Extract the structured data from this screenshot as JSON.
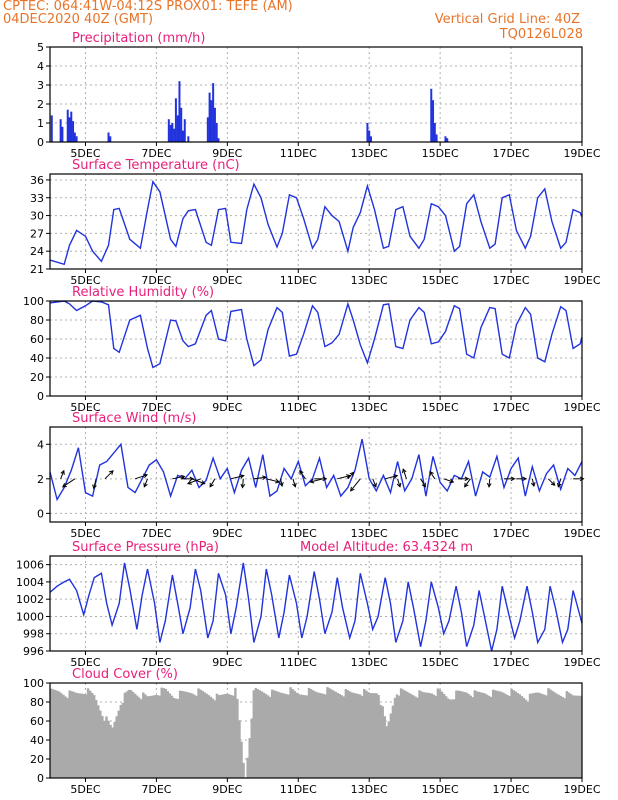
{
  "header": {
    "line1": "CPTEC:   064:41W-04:12S   PROX01: TEFE (AM)",
    "line2": "04DEC2020 40Z (GMT)",
    "right1": "Vertical Grid Line: 40Z",
    "right2": "TQ0126L028",
    "color": "#e8742a"
  },
  "colors": {
    "title": "#e8207a",
    "line": "#2233dd",
    "bar": "#2233dd",
    "cloud": "#aaaaaa",
    "grid": "#b0b0b0"
  },
  "x_tick_labels": [
    "5DEC",
    "7DEC",
    "9DEC",
    "11DEC",
    "13DEC",
    "15DEC",
    "17DEC",
    "19DEC"
  ],
  "x_tick_days": [
    5,
    7,
    9,
    11,
    13,
    15,
    17,
    19
  ],
  "x_range": [
    4.0,
    19.0
  ],
  "chart_data": [
    {
      "type": "bar",
      "title": "Precipitation (mm/h)",
      "ylim": [
        0,
        5
      ],
      "yticks": [
        0,
        1,
        2,
        3,
        4,
        5
      ],
      "x_unit": "day of December 2020",
      "x": [
        4.05,
        4.3,
        4.35,
        4.5,
        4.55,
        4.6,
        4.65,
        4.7,
        4.75,
        5.65,
        5.7,
        7.35,
        7.4,
        7.45,
        7.5,
        7.55,
        7.6,
        7.65,
        7.7,
        7.75,
        7.8,
        7.9,
        8.45,
        8.5,
        8.55,
        8.6,
        8.65,
        8.7,
        8.75,
        12.95,
        13.0,
        13.05,
        14.75,
        14.8,
        14.85,
        14.9,
        15.15,
        15.2
      ],
      "values": [
        1.4,
        1.2,
        0.8,
        1.7,
        1.3,
        1.6,
        1.1,
        0.5,
        0.3,
        0.5,
        0.3,
        1.2,
        0.9,
        1.0,
        0.7,
        2.3,
        1.4,
        3.2,
        1.8,
        0.6,
        1.2,
        0.3,
        1.3,
        2.6,
        2.2,
        3.1,
        1.8,
        1.0,
        0.2,
        1.0,
        0.6,
        0.3,
        2.8,
        2.2,
        1.0,
        0.4,
        0.3,
        0.2
      ]
    },
    {
      "type": "line",
      "title": "Surface Temperature (nC)",
      "ylim": [
        21,
        37
      ],
      "yticks": [
        21,
        24,
        27,
        30,
        33,
        36
      ],
      "x_unit": "day of December 2020",
      "x": [
        4.0,
        4.4,
        4.55,
        4.75,
        5.0,
        5.2,
        5.45,
        5.65,
        5.8,
        5.95,
        6.25,
        6.55,
        6.75,
        6.9,
        7.1,
        7.4,
        7.55,
        7.75,
        7.9,
        8.1,
        8.4,
        8.55,
        8.75,
        8.95,
        9.1,
        9.4,
        9.55,
        9.75,
        9.95,
        10.15,
        10.4,
        10.55,
        10.75,
        10.95,
        11.15,
        11.4,
        11.55,
        11.75,
        11.95,
        12.15,
        12.4,
        12.55,
        12.75,
        12.95,
        13.15,
        13.4,
        13.55,
        13.75,
        13.95,
        14.15,
        14.4,
        14.55,
        14.75,
        14.95,
        15.15,
        15.4,
        15.55,
        15.75,
        15.95,
        16.15,
        16.4,
        16.55,
        16.75,
        16.95,
        17.15,
        17.4,
        17.55,
        17.75,
        17.95,
        18.15,
        18.4,
        18.55,
        18.75,
        18.95,
        19.0
      ],
      "values": [
        22.5,
        21.8,
        25.0,
        27.5,
        26.5,
        24.0,
        22.3,
        25.0,
        31.0,
        31.2,
        26.0,
        24.5,
        31.0,
        35.7,
        34.0,
        26.0,
        24.8,
        29.5,
        30.8,
        31.0,
        25.5,
        25.0,
        31.0,
        31.2,
        25.5,
        25.3,
        31.0,
        35.3,
        33.0,
        28.5,
        24.7,
        27.0,
        33.5,
        33.0,
        29.5,
        24.5,
        26.0,
        31.5,
        30.0,
        29.0,
        24.0,
        28.0,
        30.5,
        35.0,
        31.0,
        24.5,
        24.8,
        31.0,
        31.5,
        26.5,
        24.5,
        26.0,
        32.0,
        31.5,
        30.0,
        24.0,
        24.8,
        32.0,
        33.5,
        29.0,
        24.5,
        25.2,
        33.0,
        33.5,
        27.5,
        24.5,
        26.5,
        33.0,
        34.5,
        29.0,
        24.5,
        25.5,
        31.0,
        30.5,
        29.8
      ]
    },
    {
      "type": "line",
      "title": "Relative Humidity (%)",
      "ylim": [
        0,
        100
      ],
      "yticks": [
        0,
        20,
        40,
        60,
        80,
        100
      ],
      "x_unit": "day of December 2020",
      "x": [
        4.0,
        4.4,
        4.55,
        4.75,
        5.0,
        5.2,
        5.45,
        5.65,
        5.8,
        5.95,
        6.25,
        6.55,
        6.75,
        6.9,
        7.1,
        7.4,
        7.55,
        7.75,
        7.9,
        8.1,
        8.4,
        8.55,
        8.75,
        8.95,
        9.1,
        9.4,
        9.55,
        9.75,
        9.95,
        10.15,
        10.4,
        10.55,
        10.75,
        10.95,
        11.15,
        11.4,
        11.55,
        11.75,
        11.95,
        12.15,
        12.4,
        12.55,
        12.75,
        12.95,
        13.15,
        13.4,
        13.55,
        13.75,
        13.95,
        14.15,
        14.4,
        14.55,
        14.75,
        14.95,
        15.15,
        15.4,
        15.55,
        15.75,
        15.95,
        16.15,
        16.4,
        16.55,
        16.75,
        16.95,
        17.15,
        17.4,
        17.55,
        17.75,
        17.95,
        18.15,
        18.4,
        18.55,
        18.75,
        18.95,
        19.0
      ],
      "values": [
        98,
        100,
        97,
        90,
        95,
        100,
        99,
        96,
        50,
        46,
        80,
        85,
        50,
        30,
        34,
        80,
        79,
        58,
        52,
        55,
        85,
        90,
        60,
        58,
        89,
        91,
        60,
        32,
        38,
        70,
        93,
        88,
        42,
        44,
        65,
        95,
        88,
        52,
        56,
        65,
        97,
        80,
        54,
        35,
        60,
        96,
        97,
        52,
        50,
        80,
        93,
        88,
        55,
        57,
        68,
        95,
        92,
        44,
        40,
        72,
        93,
        92,
        44,
        40,
        75,
        93,
        86,
        40,
        36,
        65,
        94,
        90,
        50,
        55,
        62
      ]
    },
    {
      "type": "line",
      "title": "Surface Wind (m/s)",
      "ylim": [
        -0.5,
        5.0
      ],
      "yticks": [
        0,
        2,
        4
      ],
      "x_unit": "day of December 2020",
      "x": [
        4.0,
        4.2,
        4.4,
        4.6,
        4.8,
        5.0,
        5.2,
        5.4,
        5.6,
        5.8,
        6.0,
        6.2,
        6.4,
        6.6,
        6.8,
        7.0,
        7.2,
        7.4,
        7.6,
        7.8,
        8.0,
        8.2,
        8.4,
        8.6,
        8.8,
        9.0,
        9.2,
        9.4,
        9.6,
        9.8,
        10.0,
        10.2,
        10.4,
        10.6,
        10.8,
        11.0,
        11.2,
        11.4,
        11.6,
        11.8,
        12.0,
        12.2,
        12.4,
        12.6,
        12.8,
        13.0,
        13.2,
        13.4,
        13.6,
        13.8,
        14.0,
        14.2,
        14.4,
        14.6,
        14.8,
        15.0,
        15.2,
        15.4,
        15.6,
        15.8,
        16.0,
        16.2,
        16.4,
        16.6,
        16.8,
        17.0,
        17.2,
        17.4,
        17.6,
        17.8,
        18.0,
        18.2,
        18.4,
        18.6,
        18.8,
        19.0
      ],
      "values": [
        2.4,
        0.8,
        1.5,
        2.5,
        3.8,
        1.2,
        1.0,
        2.8,
        3.0,
        3.5,
        4.0,
        1.5,
        1.2,
        2.0,
        2.8,
        3.1,
        2.4,
        1.0,
        2.2,
        2.0,
        2.5,
        1.5,
        1.9,
        3.2,
        2.0,
        2.6,
        1.2,
        2.5,
        3.2,
        1.5,
        3.4,
        1.0,
        1.3,
        2.6,
        2.0,
        3.0,
        1.6,
        2.0,
        3.2,
        1.5,
        2.2,
        1.0,
        1.5,
        2.5,
        4.3,
        2.0,
        1.3,
        2.2,
        1.2,
        3.0,
        1.3,
        2.0,
        3.4,
        1.0,
        3.3,
        1.8,
        1.3,
        2.2,
        2.0,
        3.0,
        1.0,
        2.4,
        2.1,
        3.3,
        1.5,
        2.6,
        3.2,
        1.0,
        2.7,
        1.3,
        2.3,
        2.8,
        1.4,
        2.6,
        2.2,
        3.0
      ],
      "arrows": [
        {
          "x": 4.3,
          "y": 2.0,
          "u": 0.4,
          "v": 1.0
        },
        {
          "x": 4.7,
          "y": 2.0,
          "u": -1.5,
          "v": -1.0
        },
        {
          "x": 5.3,
          "y": 2.0,
          "u": -0.3,
          "v": -1.2
        },
        {
          "x": 5.55,
          "y": 2.0,
          "u": 1.0,
          "v": 1.0
        },
        {
          "x": 6.4,
          "y": 2.0,
          "u": 1.5,
          "v": 0.5
        },
        {
          "x": 6.75,
          "y": 2.0,
          "u": -0.4,
          "v": -1.0
        },
        {
          "x": 7.45,
          "y": 2.0,
          "u": 1.5,
          "v": 0.3
        },
        {
          "x": 7.7,
          "y": 2.0,
          "u": 1.5,
          "v": 0.0
        },
        {
          "x": 8.0,
          "y": 2.0,
          "u": 1.6,
          "v": -0.6
        },
        {
          "x": 8.25,
          "y": 2.0,
          "u": -1.6,
          "v": -0.6
        },
        {
          "x": 8.65,
          "y": 2.0,
          "u": -0.6,
          "v": -1.0
        },
        {
          "x": 9.1,
          "y": 2.0,
          "u": 1.6,
          "v": 0.4
        },
        {
          "x": 9.45,
          "y": 2.0,
          "u": -0.1,
          "v": -1.1
        },
        {
          "x": 9.75,
          "y": 2.0,
          "u": 1.5,
          "v": 0.2
        },
        {
          "x": 10.1,
          "y": 2.0,
          "u": 1.6,
          "v": -0.4
        },
        {
          "x": 10.5,
          "y": 2.0,
          "u": 0.2,
          "v": -0.9
        },
        {
          "x": 10.85,
          "y": 2.0,
          "u": 0.3,
          "v": -1.0
        },
        {
          "x": 11.2,
          "y": 2.0,
          "u": -0.7,
          "v": 1.0
        },
        {
          "x": 11.45,
          "y": 2.0,
          "u": 1.5,
          "v": 0.0
        },
        {
          "x": 11.7,
          "y": 2.0,
          "u": -1.6,
          "v": -0.4
        },
        {
          "x": 12.1,
          "y": 2.0,
          "u": 1.6,
          "v": 0.4
        },
        {
          "x": 12.4,
          "y": 2.0,
          "u": 0.7,
          "v": 0.8
        },
        {
          "x": 12.75,
          "y": 2.0,
          "u": -1.2,
          "v": -1.5
        },
        {
          "x": 13.1,
          "y": 2.0,
          "u": 0.4,
          "v": -1.0
        },
        {
          "x": 13.45,
          "y": 2.0,
          "u": 1.5,
          "v": 0.4
        },
        {
          "x": 13.8,
          "y": 2.0,
          "u": 0.3,
          "v": -1.0
        },
        {
          "x": 14.05,
          "y": 2.0,
          "u": -0.4,
          "v": 1.2
        },
        {
          "x": 14.45,
          "y": 2.0,
          "u": 0.6,
          "v": -1.0
        },
        {
          "x": 14.85,
          "y": 2.0,
          "u": -0.6,
          "v": 0.9
        },
        {
          "x": 15.1,
          "y": 2.0,
          "u": 1.2,
          "v": -0.4
        },
        {
          "x": 15.5,
          "y": 2.0,
          "u": 1.3,
          "v": 0.0
        },
        {
          "x": 15.85,
          "y": 2.0,
          "u": -0.7,
          "v": -1.0
        },
        {
          "x": 16.4,
          "y": 2.0,
          "u": -0.1,
          "v": -1.0
        },
        {
          "x": 16.8,
          "y": 2.0,
          "u": 1.3,
          "v": 0.0
        },
        {
          "x": 17.15,
          "y": 2.0,
          "u": 1.2,
          "v": 0.0
        },
        {
          "x": 17.6,
          "y": 2.0,
          "u": 0.2,
          "v": -0.9
        },
        {
          "x": 18.05,
          "y": 2.0,
          "u": 0.8,
          "v": -0.8
        },
        {
          "x": 18.4,
          "y": 2.0,
          "u": -0.3,
          "v": -1.0
        },
        {
          "x": 18.75,
          "y": 2.0,
          "u": 1.3,
          "v": 0.0
        }
      ]
    },
    {
      "type": "line",
      "title": "Surface Pressure (hPa)",
      "annotation": "Model Altitude: 63.4324 m",
      "ylim": [
        996,
        1007
      ],
      "yticks": [
        996,
        998,
        1000,
        1002,
        1004,
        1006
      ],
      "x_unit": "day of December 2020",
      "x": [
        4.0,
        4.2,
        4.4,
        4.55,
        4.75,
        4.95,
        5.1,
        5.25,
        5.45,
        5.6,
        5.75,
        5.95,
        6.1,
        6.25,
        6.45,
        6.6,
        6.75,
        6.95,
        7.1,
        7.25,
        7.45,
        7.6,
        7.75,
        7.95,
        8.1,
        8.25,
        8.45,
        8.6,
        8.75,
        8.95,
        9.1,
        9.25,
        9.45,
        9.6,
        9.75,
        9.95,
        10.1,
        10.25,
        10.45,
        10.6,
        10.75,
        10.95,
        11.1,
        11.25,
        11.45,
        11.6,
        11.75,
        11.95,
        12.1,
        12.25,
        12.45,
        12.6,
        12.75,
        12.95,
        13.1,
        13.25,
        13.45,
        13.6,
        13.75,
        13.95,
        14.1,
        14.25,
        14.45,
        14.6,
        14.75,
        14.95,
        15.1,
        15.25,
        15.45,
        15.6,
        15.75,
        15.95,
        16.1,
        16.25,
        16.45,
        16.6,
        16.75,
        16.95,
        17.1,
        17.25,
        17.45,
        17.6,
        17.75,
        17.95,
        18.1,
        18.25,
        18.45,
        18.6,
        18.75,
        18.95,
        19.0
      ],
      "values": [
        1002.8,
        1003.5,
        1004.0,
        1004.3,
        1003.0,
        1000.2,
        1002.5,
        1004.5,
        1005.0,
        1001.5,
        999.0,
        1001.5,
        1006.2,
        1003.2,
        998.5,
        1002.5,
        1005.5,
        1001.5,
        997.0,
        999.5,
        1004.8,
        1001.5,
        998.0,
        1001.0,
        1005.5,
        1003.0,
        997.5,
        999.5,
        1005.0,
        1002.5,
        998.0,
        1001.0,
        1006.2,
        1002.0,
        997.0,
        1000.0,
        1005.5,
        1002.5,
        997.5,
        1000.5,
        1004.8,
        1001.5,
        997.5,
        1000.0,
        1005.2,
        1002.0,
        998.0,
        1000.5,
        1004.5,
        1001.0,
        997.5,
        999.5,
        1005.0,
        1001.5,
        998.5,
        1000.0,
        1004.5,
        1001.5,
        997.0,
        999.5,
        1004.0,
        1001.0,
        996.5,
        999.5,
        1004.0,
        1001.0,
        998.0,
        999.5,
        1003.5,
        1000.5,
        996.5,
        999.0,
        1003.0,
        1000.0,
        996.0,
        998.5,
        1003.5,
        1000.0,
        997.5,
        999.5,
        1003.5,
        1000.5,
        997.0,
        998.5,
        1003.5,
        1001.0,
        997.0,
        998.5,
        1003.0,
        1000.0,
        999.2
      ]
    },
    {
      "type": "area",
      "title": "Cloud Cover (%)",
      "ylim": [
        0,
        100
      ],
      "yticks": [
        0,
        20,
        40,
        60,
        80,
        100
      ],
      "x_unit": "day of December 2020",
      "x": [
        4.0,
        4.25,
        4.5,
        4.75,
        5.0,
        5.25,
        5.5,
        5.75,
        6.0,
        6.25,
        6.5,
        6.75,
        7.0,
        7.25,
        7.5,
        7.75,
        8.0,
        8.25,
        8.5,
        8.75,
        9.0,
        9.25,
        9.5,
        9.75,
        10.0,
        10.25,
        10.5,
        10.75,
        11.0,
        11.25,
        11.5,
        11.75,
        12.0,
        12.25,
        12.5,
        12.75,
        13.0,
        13.25,
        13.5,
        13.75,
        14.0,
        14.25,
        14.5,
        14.75,
        15.0,
        15.25,
        15.5,
        15.75,
        16.0,
        16.25,
        16.5,
        16.75,
        17.0,
        17.25,
        17.5,
        17.75,
        18.0,
        18.25,
        18.5,
        18.75,
        19.0
      ],
      "values": [
        94,
        95,
        92,
        93,
        96,
        90,
        70,
        55,
        85,
        96,
        92,
        88,
        94,
        96,
        90,
        93,
        95,
        94,
        92,
        88,
        94,
        95,
        2,
        96,
        95,
        93,
        94,
        96,
        92,
        95,
        94,
        96,
        95,
        94,
        93,
        95,
        92,
        96,
        55,
        95,
        94,
        93,
        92,
        95,
        94,
        88,
        93,
        95,
        92,
        94,
        93,
        95,
        94,
        92,
        88,
        94,
        95,
        93,
        92,
        90,
        94
      ]
    }
  ]
}
